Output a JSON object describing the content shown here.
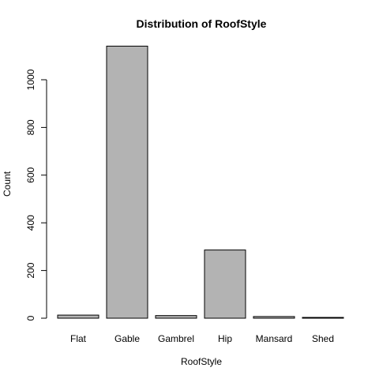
{
  "chart_data": {
    "type": "bar",
    "title": "Distribution of RoofStyle",
    "xlabel": "RoofStyle",
    "ylabel": "Count",
    "categories": [
      "Flat",
      "Gable",
      "Gambrel",
      "Hip",
      "Mansard",
      "Shed"
    ],
    "values": [
      13,
      1141,
      11,
      286,
      7,
      2
    ],
    "ylim": [
      0,
      1141
    ],
    "yticks": [
      0,
      200,
      400,
      600,
      800,
      1000
    ],
    "bar_color": "#b3b3b3",
    "grid": false,
    "legend": "none"
  }
}
